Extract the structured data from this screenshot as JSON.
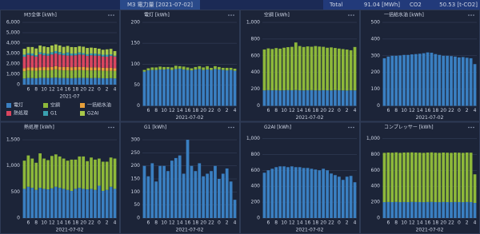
{
  "header": {
    "title": "M3 電力量 [2021-07-02]",
    "total_label": "Total",
    "total_value": "91.04 [MWh]",
    "co2_label": "CO2",
    "co2_value": "50.53 [t-CO2]"
  },
  "chart_data": [
    {
      "type": "bar",
      "title": "M3全体 [kWh]",
      "xlabel": "2021-07",
      "legend": true,
      "categories": [
        null,
        "6",
        null,
        "8",
        null,
        "10",
        null,
        "12",
        null,
        "14",
        null,
        "16",
        null,
        "18",
        null,
        "20",
        null,
        "22",
        null,
        "0",
        null,
        "2",
        null,
        "4"
      ],
      "ylim": [
        0,
        6000
      ],
      "yticks": [
        0,
        {
          "value": 1000,
          "label": "1,000"
        },
        {
          "value": 2000,
          "label": "2,000"
        },
        {
          "value": 3000,
          "label": "3,000"
        },
        {
          "value": 4000,
          "label": "4,000"
        },
        {
          "value": 5000,
          "label": "5,000"
        },
        {
          "value": 6000,
          "label": "6,000"
        }
      ],
      "series": [
        {
          "name": "電灯",
          "color": "#3a7fc1",
          "values": [
            600,
            650,
            640,
            620,
            660,
            650,
            640,
            660,
            680,
            650,
            640,
            630,
            620,
            640,
            660,
            650,
            640,
            630,
            650,
            640,
            620,
            610,
            630,
            600
          ]
        },
        {
          "name": "空調",
          "color": "#8db83a",
          "values": [
            700,
            720,
            710,
            720,
            715,
            730,
            735,
            740,
            790,
            750,
            740,
            745,
            740,
            750,
            745,
            740,
            730,
            735,
            725,
            720,
            715,
            710,
            700,
            720
          ]
        },
        {
          "name": "一括給水油",
          "color": "#e8a03a",
          "values": [
            290,
            300,
            305,
            305,
            307,
            310,
            310,
            313,
            315,
            317,
            320,
            325,
            323,
            315,
            310,
            305,
            305,
            303,
            300,
            295,
            297,
            293,
            290,
            255
          ]
        },
        {
          "name": "熱処理",
          "color": "#d9455f",
          "values": [
            1100,
            1200,
            1140,
            1060,
            1240,
            1140,
            1110,
            1190,
            1220,
            1180,
            1140,
            1100,
            1120,
            1120,
            1180,
            1180,
            1090,
            1160,
            1120,
            1140,
            1080,
            1080,
            1160,
            1140
          ]
        },
        {
          "name": "G1",
          "color": "#3aa0b0",
          "values": [
            200,
            160,
            210,
            140,
            200,
            200,
            180,
            220,
            230,
            240,
            170,
            300,
            200,
            180,
            210,
            160,
            170,
            180,
            200,
            150,
            170,
            190,
            140,
            70
          ]
        },
        {
          "name": "G2AI",
          "color": "#a8c84a",
          "values": [
            570,
            600,
            620,
            640,
            650,
            650,
            640,
            650,
            640,
            640,
            630,
            630,
            620,
            610,
            600,
            620,
            600,
            560,
            540,
            520,
            480,
            520,
            530,
            450
          ]
        }
      ]
    },
    {
      "type": "bar",
      "title": "電灯 [kWh]",
      "xlabel": "2021-07-02",
      "categories": [
        null,
        "6",
        null,
        "8",
        null,
        "10",
        null,
        "12",
        null,
        "14",
        null,
        "16",
        null,
        "18",
        null,
        "20",
        null,
        "22",
        null,
        "0",
        null,
        "2",
        null,
        "4"
      ],
      "ylim": [
        0,
        200
      ],
      "yticks": [
        0,
        50,
        100,
        150,
        200
      ],
      "series": [
        {
          "color": "#3a7fc1",
          "values": [
            82,
            85,
            86,
            86,
            87,
            87,
            88,
            86,
            88,
            89,
            87,
            86,
            85,
            87,
            88,
            86,
            87,
            86,
            88,
            87,
            86,
            85,
            86,
            84
          ]
        },
        {
          "color": "#8db83a",
          "values": [
            4,
            5,
            6,
            6,
            7,
            6,
            5,
            6,
            8,
            6,
            7,
            6,
            5,
            6,
            7,
            6,
            8,
            5,
            7,
            6,
            5,
            6,
            5,
            5
          ]
        }
      ]
    },
    {
      "type": "bar",
      "title": "空調 [kWh]",
      "xlabel": "2021-07-02",
      "categories": [
        null,
        "6",
        null,
        "8",
        null,
        "10",
        null,
        "12",
        null,
        "14",
        null,
        "16",
        null,
        "18",
        null,
        "20",
        null,
        "22",
        null,
        "0",
        null,
        "2",
        null,
        "4"
      ],
      "ylim": [
        0,
        1000
      ],
      "yticks": [
        0,
        200,
        400,
        600,
        800,
        {
          "value": 1000,
          "label": "1,000"
        }
      ],
      "series": [
        {
          "color": "#3a7fc1",
          "values": [
            185,
            188,
            186,
            187,
            185,
            186,
            188,
            187,
            189,
            186,
            185,
            187,
            188,
            186,
            185,
            187,
            186,
            185,
            188,
            186,
            185,
            184,
            186,
            185
          ]
        },
        {
          "color": "#8db83a",
          "values": [
            490,
            500,
            495,
            505,
            500,
            510,
            515,
            520,
            570,
            530,
            520,
            525,
            520,
            530,
            525,
            520,
            510,
            515,
            505,
            500,
            495,
            490,
            480,
            520
          ]
        }
      ]
    },
    {
      "type": "bar",
      "title": "一括給水油 [kWh]",
      "xlabel": "2021-07-02",
      "categories": [
        null,
        "6",
        null,
        "8",
        null,
        "10",
        null,
        "12",
        null,
        "14",
        null,
        "16",
        null,
        "18",
        null,
        "20",
        null,
        "22",
        null,
        "0",
        null,
        "2",
        null,
        "4"
      ],
      "ylim": [
        0,
        500
      ],
      "yticks": [
        0,
        100,
        200,
        300,
        400,
        500
      ],
      "series": [
        {
          "color": "#3a7fc1",
          "values": [
            285,
            295,
            300,
            300,
            302,
            305,
            305,
            308,
            310,
            312,
            315,
            320,
            318,
            310,
            305,
            300,
            300,
            298,
            295,
            290,
            292,
            288,
            285,
            250
          ]
        }
      ]
    },
    {
      "type": "bar",
      "title": "熱処理 [kWh]",
      "xlabel": "2021-07-02",
      "categories": [
        null,
        "6",
        null,
        "8",
        null,
        "10",
        null,
        "12",
        null,
        "14",
        null,
        "16",
        null,
        "18",
        null,
        "20",
        null,
        "22",
        null,
        "0",
        null,
        "2",
        null,
        "4"
      ],
      "ylim": [
        0,
        1600
      ],
      "yticks": [
        0,
        500,
        {
          "value": 1000,
          "label": "1,000"
        },
        {
          "value": 1500,
          "label": "1,500"
        }
      ],
      "series": [
        {
          "color": "#3a7fc1",
          "values": [
            560,
            600,
            580,
            540,
            580,
            560,
            550,
            570,
            600,
            580,
            560,
            540,
            520,
            560,
            580,
            560,
            550,
            560,
            540,
            620,
            520,
            540,
            600,
            560
          ]
        },
        {
          "color": "#8db83a",
          "values": [
            540,
            600,
            560,
            520,
            660,
            580,
            560,
            620,
            620,
            600,
            580,
            560,
            600,
            560,
            600,
            620,
            540,
            600,
            580,
            520,
            560,
            540,
            560,
            580
          ]
        }
      ]
    },
    {
      "type": "bar",
      "title": "G1 [kWh]",
      "xlabel": "2021-07-02",
      "categories": [
        null,
        "6",
        null,
        "8",
        null,
        "10",
        null,
        "12",
        null,
        "14",
        null,
        "16",
        null,
        "18",
        null,
        "20",
        null,
        "22",
        null,
        "0",
        null,
        "2",
        null,
        "4"
      ],
      "ylim": [
        0,
        320
      ],
      "yticks": [
        0,
        50,
        100,
        150,
        200,
        250,
        300
      ],
      "series": [
        {
          "color": "#3a7fc1",
          "values": [
            200,
            160,
            210,
            140,
            200,
            200,
            180,
            220,
            230,
            240,
            170,
            300,
            200,
            180,
            210,
            160,
            170,
            180,
            200,
            150,
            170,
            190,
            140,
            70
          ]
        }
      ]
    },
    {
      "type": "bar",
      "title": "G2AI [kWh]",
      "xlabel": "2021-07-02",
      "categories": [
        null,
        "6",
        null,
        "8",
        null,
        "10",
        null,
        "12",
        null,
        "14",
        null,
        "16",
        null,
        "18",
        null,
        "20",
        null,
        "22",
        null,
        "0",
        null,
        "2",
        null,
        "4"
      ],
      "ylim": [
        0,
        1050
      ],
      "yticks": [
        0,
        200,
        400,
        600,
        800,
        {
          "value": 1000,
          "label": "1,000"
        }
      ],
      "series": [
        {
          "color": "#3a7fc1",
          "values": [
            570,
            600,
            620,
            640,
            650,
            650,
            640,
            650,
            640,
            640,
            630,
            630,
            620,
            610,
            600,
            620,
            600,
            560,
            540,
            520,
            480,
            520,
            530,
            450
          ]
        }
      ]
    },
    {
      "type": "bar",
      "title": "コンプレッサー [kWh]",
      "xlabel": "2021-07-02",
      "categories": [
        null,
        "6",
        null,
        "8",
        null,
        "10",
        null,
        "12",
        null,
        "14",
        null,
        "16",
        null,
        "18",
        null,
        "20",
        null,
        "22",
        null,
        "0",
        null,
        "2",
        null,
        "4"
      ],
      "ylim": [
        0,
        1050
      ],
      "yticks": [
        0,
        200,
        400,
        600,
        800,
        {
          "value": 1000,
          "label": "1,000"
        }
      ],
      "series": [
        {
          "color": "#3a7fc1",
          "values": [
            200,
            202,
            201,
            203,
            200,
            202,
            201,
            203,
            202,
            201,
            200,
            202,
            203,
            201,
            200,
            202,
            201,
            200,
            202,
            201,
            200,
            202,
            201,
            190
          ]
        },
        {
          "color": "#8db83a",
          "values": [
            620,
            622,
            621,
            623,
            620,
            622,
            624,
            623,
            622,
            621,
            620,
            622,
            623,
            621,
            620,
            622,
            621,
            620,
            622,
            621,
            620,
            622,
            621,
            360
          ]
        }
      ]
    }
  ]
}
